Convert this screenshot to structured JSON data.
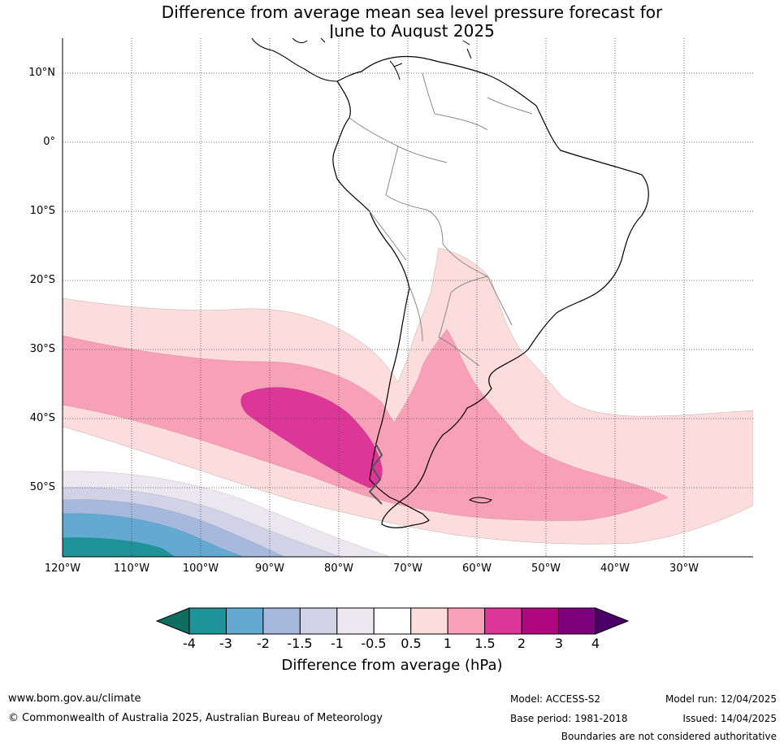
{
  "title_line1": "Difference from average mean sea level pressure forecast for",
  "title_line2": "June to August 2025",
  "map": {
    "lat_labels": [
      "10°N",
      "0°",
      "10°S",
      "20°S",
      "30°S",
      "40°S",
      "50°S"
    ],
    "lon_labels": [
      "120°W",
      "110°W",
      "100°W",
      "90°W",
      "80°W",
      "70°W",
      "60°W",
      "50°W",
      "40°W",
      "30°W"
    ]
  },
  "colorbar": {
    "ticks": [
      "-4",
      "-3",
      "-2",
      "-1.5",
      "-1",
      "-0.5",
      "0.5",
      "1",
      "1.5",
      "2",
      "3",
      "4"
    ],
    "colors": {
      "below_min": "#0c6f5f",
      "bins": [
        "#1e9499",
        "#64a9d1",
        "#a6b9dc",
        "#d1d2e6",
        "#ebe7ee",
        "#ffffff",
        "#fddcdc",
        "#f8a0b8",
        "#dd3699",
        "#b0077e",
        "#7b007a"
      ],
      "above_max": "#4b0068"
    },
    "label": "Difference from average (hPa)"
  },
  "footer": {
    "website": "www.bom.gov.au/climate",
    "copyright": "© Commonwealth of Australia 2025, Australian Bureau of Meteorology",
    "model": "Model: ACCESS-S2",
    "base_period": "Base period: 1981-2018",
    "model_run": "Model run: 12/04/2025",
    "issued": "Issued: 14/04/2025",
    "disclaimer": "Boundaries are not considered authoritative"
  }
}
